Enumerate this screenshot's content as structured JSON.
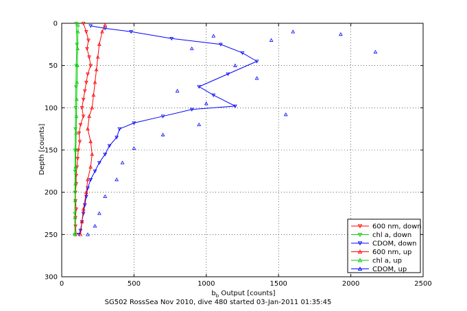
{
  "chart_data": {
    "type": "scatter",
    "title": "",
    "xlabel_main": "b",
    "xlabel_sub": "b",
    "xlabel_rest": " Output [counts]",
    "ylabel": "Depth [counts]",
    "caption": "SG502 RossSea Nov 2010, dive 480 started 03-Jan-2011 01:35:45",
    "xlim": [
      0,
      2500
    ],
    "ylim": [
      0,
      300
    ],
    "y_reversed": true,
    "grid": true,
    "legend_position": "bottom-right",
    "xticks": [
      "0",
      "500",
      "1000",
      "1500",
      "2000",
      "2500"
    ],
    "yticks": [
      "0",
      "50",
      "100",
      "150",
      "200",
      "250",
      "300"
    ],
    "series": [
      {
        "name": "600 nm, down",
        "color": "#ff0000",
        "marker": "triangle-down",
        "connected": true,
        "points": [
          [
            150,
            0
          ],
          [
            170,
            10
          ],
          [
            185,
            20
          ],
          [
            175,
            30
          ],
          [
            190,
            40
          ],
          [
            200,
            50
          ],
          [
            180,
            60
          ],
          [
            170,
            70
          ],
          [
            160,
            80
          ],
          [
            150,
            90
          ],
          [
            140,
            100
          ],
          [
            150,
            110
          ],
          [
            130,
            120
          ],
          [
            120,
            130
          ],
          [
            125,
            140
          ],
          [
            115,
            150
          ],
          [
            110,
            160
          ],
          [
            105,
            170
          ],
          [
            100,
            180
          ],
          [
            100,
            190
          ],
          [
            95,
            200
          ],
          [
            95,
            210
          ],
          [
            100,
            220
          ],
          [
            95,
            230
          ],
          [
            95,
            240
          ],
          [
            100,
            250
          ]
        ]
      },
      {
        "name": "chl a, down",
        "color": "#00cc00",
        "marker": "triangle-down",
        "connected": true,
        "points": [
          [
            100,
            0
          ],
          [
            105,
            25
          ],
          [
            100,
            50
          ],
          [
            98,
            75
          ],
          [
            96,
            100
          ],
          [
            95,
            125
          ],
          [
            93,
            150
          ],
          [
            92,
            175
          ],
          [
            92,
            200
          ],
          [
            91,
            225
          ],
          [
            91,
            250
          ]
        ]
      },
      {
        "name": "CDOM, down",
        "color": "#0000ff",
        "marker": "triangle-down",
        "connected": true,
        "points": [
          [
            200,
            3
          ],
          [
            300,
            6
          ],
          [
            480,
            10
          ],
          [
            760,
            18
          ],
          [
            1100,
            25
          ],
          [
            1250,
            35
          ],
          [
            1350,
            45
          ],
          [
            1150,
            60
          ],
          [
            950,
            75
          ],
          [
            1050,
            85
          ],
          [
            1200,
            98
          ],
          [
            900,
            102
          ],
          [
            700,
            110
          ],
          [
            500,
            118
          ],
          [
            400,
            125
          ],
          [
            380,
            135
          ],
          [
            330,
            145
          ],
          [
            300,
            155
          ],
          [
            260,
            165
          ],
          [
            230,
            175
          ],
          [
            200,
            185
          ],
          [
            180,
            195
          ],
          [
            170,
            205
          ],
          [
            160,
            215
          ],
          [
            150,
            225
          ],
          [
            140,
            235
          ],
          [
            130,
            245
          ],
          [
            120,
            250
          ]
        ]
      },
      {
        "name": "600 nm, up",
        "color": "#ff0000",
        "marker": "triangle-up",
        "connected": true,
        "points": [
          [
            130,
            250
          ],
          [
            140,
            235
          ],
          [
            150,
            220
          ],
          [
            170,
            200
          ],
          [
            180,
            185
          ],
          [
            200,
            170
          ],
          [
            210,
            155
          ],
          [
            200,
            140
          ],
          [
            180,
            125
          ],
          [
            190,
            110
          ],
          [
            210,
            100
          ],
          [
            220,
            85
          ],
          [
            230,
            70
          ],
          [
            240,
            55
          ],
          [
            250,
            40
          ],
          [
            260,
            25
          ],
          [
            280,
            10
          ],
          [
            300,
            2
          ]
        ]
      },
      {
        "name": "chl a, up",
        "color": "#00cc00",
        "marker": "triangle-up",
        "connected": true,
        "points": [
          [
            91,
            250
          ],
          [
            92,
            230
          ],
          [
            93,
            210
          ],
          [
            95,
            190
          ],
          [
            96,
            170
          ],
          [
            98,
            150
          ],
          [
            100,
            130
          ],
          [
            102,
            110
          ],
          [
            104,
            90
          ],
          [
            106,
            70
          ],
          [
            108,
            50
          ],
          [
            110,
            30
          ],
          [
            112,
            10
          ],
          [
            113,
            2
          ]
        ]
      },
      {
        "name": "CDOM, up",
        "color": "#0000ff",
        "marker": "triangle-up",
        "connected": false,
        "points": [
          [
            1930,
            13
          ],
          [
            2170,
            34
          ],
          [
            1600,
            10
          ],
          [
            1450,
            20
          ],
          [
            1050,
            15
          ],
          [
            900,
            30
          ],
          [
            1200,
            50
          ],
          [
            1350,
            65
          ],
          [
            800,
            80
          ],
          [
            1000,
            95
          ],
          [
            1550,
            108
          ],
          [
            950,
            120
          ],
          [
            700,
            132
          ],
          [
            500,
            148
          ],
          [
            420,
            165
          ],
          [
            380,
            185
          ],
          [
            300,
            205
          ],
          [
            260,
            225
          ],
          [
            230,
            240
          ],
          [
            180,
            250
          ]
        ]
      }
    ]
  }
}
